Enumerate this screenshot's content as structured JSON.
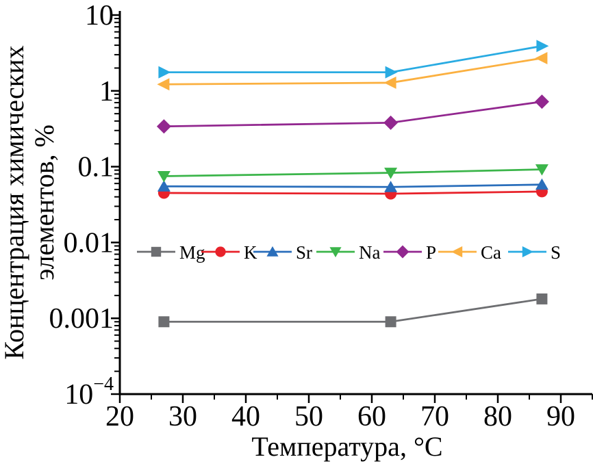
{
  "figure": {
    "background": "#FFFFFF"
  },
  "chart_data": {
    "type": "line",
    "title": "",
    "xlabel": "Температура, °C",
    "ylabel": "Концентрация химических элементов, %",
    "ylabel_lines": [
      "Концентрация химических",
      "элементов, %"
    ],
    "x": [
      27,
      63,
      87
    ],
    "x_axis": {
      "min": 20,
      "max": 95,
      "major_ticks": [
        20,
        30,
        40,
        50,
        60,
        70,
        80,
        90
      ],
      "tick_labels": [
        "20",
        "30",
        "40",
        "50",
        "60",
        "70",
        "80",
        "90"
      ],
      "minor_ticks": [
        25,
        35,
        45,
        55,
        65,
        75,
        85,
        95
      ]
    },
    "y_axis": {
      "scale": "log",
      "min": 0.0001,
      "max": 10,
      "tick_values": [
        10,
        1,
        0.1,
        0.01,
        0.001,
        0.0001
      ],
      "tick_labels": [
        "10",
        "1",
        "0.1",
        "0.01",
        "0.001",
        "10^−4"
      ]
    },
    "series": [
      {
        "name": "Mg",
        "marker": "square",
        "color": "#6D6E71",
        "values": [
          0.0009,
          0.0009,
          0.0018
        ]
      },
      {
        "name": "K",
        "marker": "circle",
        "color": "#E8222A",
        "values": [
          0.045,
          0.044,
          0.047
        ]
      },
      {
        "name": "Sr",
        "marker": "triangle-up",
        "color": "#2A6EBB",
        "values": [
          0.055,
          0.054,
          0.058
        ]
      },
      {
        "name": "Na",
        "marker": "triangle-down",
        "color": "#3BB54A",
        "values": [
          0.075,
          0.083,
          0.092
        ]
      },
      {
        "name": "P",
        "marker": "diamond",
        "color": "#92278F",
        "values": [
          0.34,
          0.38,
          0.72
        ]
      },
      {
        "name": "Ca",
        "marker": "triangle-left",
        "color": "#FBB040",
        "values": [
          1.22,
          1.28,
          2.7
        ]
      },
      {
        "name": "S",
        "marker": "triangle-right",
        "color": "#29ABE2",
        "values": [
          1.76,
          1.76,
          3.9
        ]
      }
    ],
    "legend": {
      "position": "inside-left-middle",
      "entries": [
        "Mg",
        "K",
        "Sr",
        "Na",
        "P",
        "Ca",
        "S"
      ]
    },
    "grid": false
  }
}
